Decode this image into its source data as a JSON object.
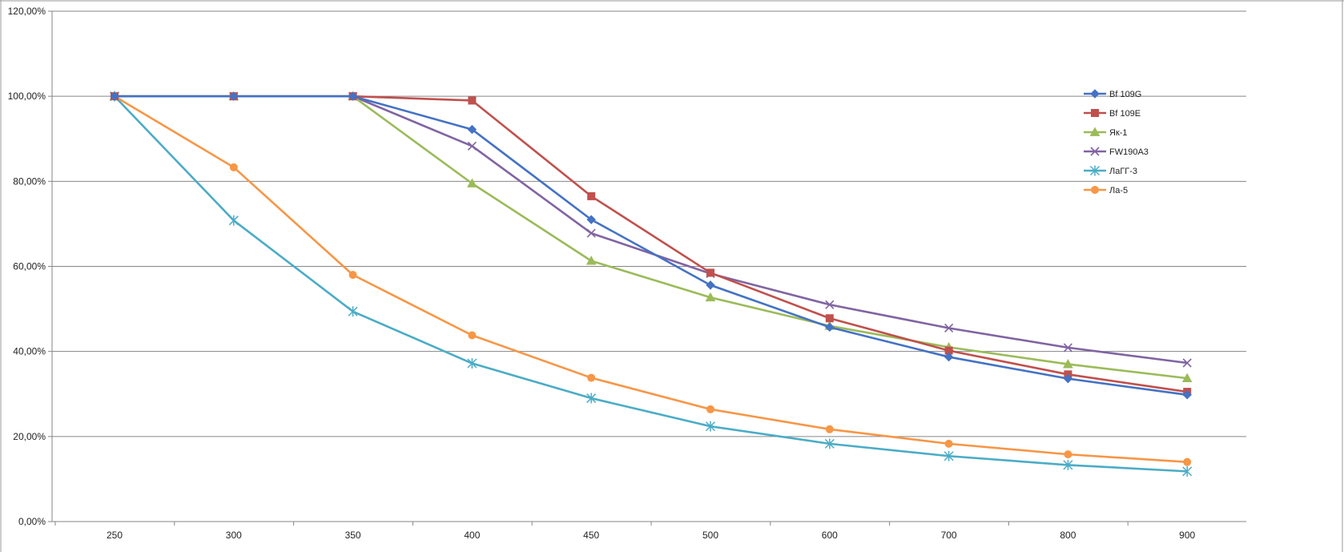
{
  "chart_data": {
    "type": "line",
    "title": "",
    "xlabel": "",
    "ylabel": "",
    "x": [
      "250",
      "300",
      "350",
      "400",
      "450",
      "500",
      "600",
      "700",
      "800",
      "900"
    ],
    "ylim": [
      0,
      1.2
    ],
    "y_ticks": [
      {
        "value": 0,
        "label": "0,00%"
      },
      {
        "value": 0.2,
        "label": "20,00%"
      },
      {
        "value": 0.4,
        "label": "40,00%"
      },
      {
        "value": 0.6,
        "label": "60,00%"
      },
      {
        "value": 0.8,
        "label": "80,00%"
      },
      {
        "value": 1.0,
        "label": "100,00%"
      },
      {
        "value": 1.2,
        "label": "120,00%"
      }
    ],
    "grid": "horizontal",
    "legend_position": "top-right",
    "series": [
      {
        "name": "Bf 109G",
        "color": "#4472C4",
        "marker": "diamond",
        "values": [
          1.0,
          1.0,
          1.0,
          0.922,
          0.71,
          0.556,
          0.457,
          0.387,
          0.336,
          0.298
        ]
      },
      {
        "name": "Bf 109E",
        "color": "#C0504D",
        "marker": "square",
        "values": [
          1.0,
          1.0,
          1.0,
          0.99,
          0.765,
          0.585,
          0.478,
          0.402,
          0.346,
          0.305
        ]
      },
      {
        "name": "Як-1",
        "color": "#9BBB59",
        "marker": "triangle",
        "values": [
          1.0,
          1.0,
          1.0,
          0.795,
          0.613,
          0.527,
          0.46,
          0.41,
          0.37,
          0.337
        ]
      },
      {
        "name": "FW190A3",
        "color": "#8064A2",
        "marker": "x",
        "values": [
          1.0,
          1.0,
          1.0,
          0.883,
          0.678,
          0.583,
          0.51,
          0.455,
          0.409,
          0.373
        ]
      },
      {
        "name": "ЛаГГ-3",
        "color": "#4BACC6",
        "marker": "star",
        "values": [
          1.0,
          0.708,
          0.494,
          0.372,
          0.29,
          0.224,
          0.183,
          0.154,
          0.133,
          0.118
        ]
      },
      {
        "name": "Ла-5",
        "color": "#F79646",
        "marker": "circle",
        "values": [
          1.0,
          0.833,
          0.58,
          0.438,
          0.338,
          0.264,
          0.217,
          0.183,
          0.158,
          0.14
        ]
      }
    ]
  }
}
